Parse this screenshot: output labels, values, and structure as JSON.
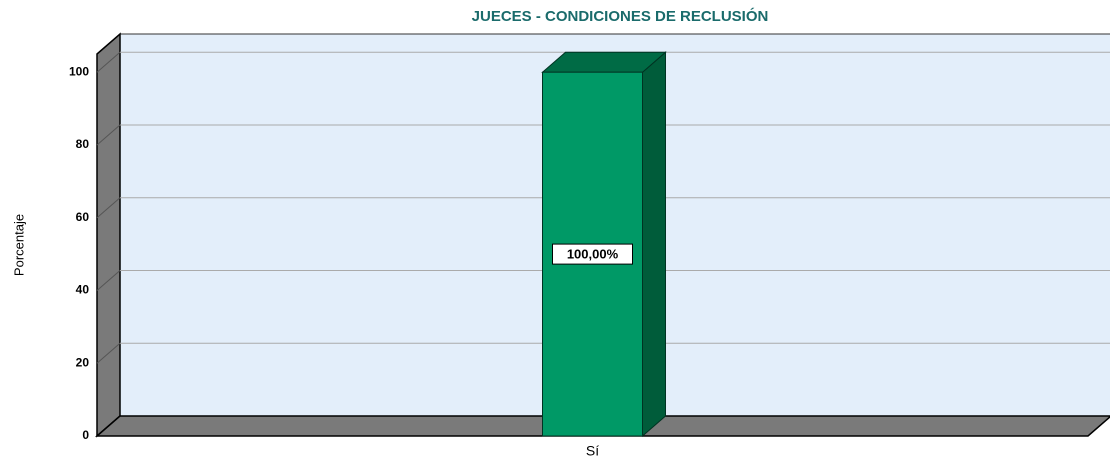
{
  "chart_data": {
    "type": "bar",
    "title": "JUECES - CONDICIONES DE RECLUSIÓN",
    "y_label": "Porcentaje",
    "categories": [
      "Sí"
    ],
    "values": [
      100
    ],
    "value_labels": [
      "100,00%"
    ],
    "color": "#009966",
    "ylim": [
      0,
      105
    ],
    "yticks": [
      0,
      20,
      40,
      60,
      80,
      100
    ],
    "grid": true
  }
}
